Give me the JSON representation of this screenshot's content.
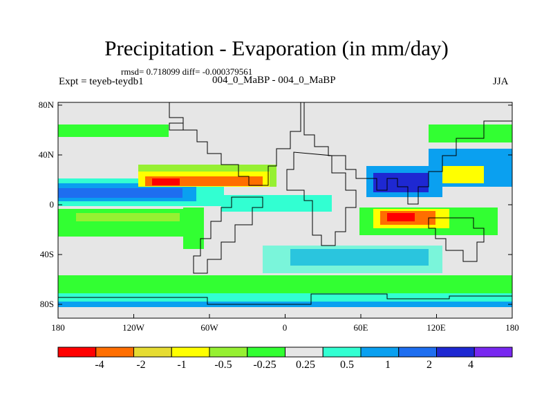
{
  "title": "Precipitation - Evaporation (in mm/day)",
  "stats": "rmsd= 0.718099 diff= -0.000379561",
  "expt": "Expt = teyeb-teydb1",
  "runs": "004_0_MaBP - 004_0_MaBP",
  "season": "JJA",
  "map": {
    "lat_labels": [
      "80N",
      "40N",
      "0",
      "40S",
      "80S"
    ],
    "lon_labels": [
      "180",
      "120W",
      "60W",
      "0",
      "60E",
      "120E",
      "180"
    ],
    "background_color": "#e6e6e6"
  },
  "colorbar": {
    "colors": [
      "#ff0000",
      "#ff6e00",
      "#e6dc32",
      "#ffff00",
      "#96f032",
      "#32ff32",
      "#e6e6e6",
      "#32ffd2",
      "#0aa0f0",
      "#1e6ef0",
      "#1e28d2",
      "#7828f0"
    ],
    "labels": [
      "-4",
      "-2",
      "-1",
      "-0.5",
      "-0.25",
      "0.25",
      "0.5",
      "1",
      "2",
      "4"
    ]
  }
}
